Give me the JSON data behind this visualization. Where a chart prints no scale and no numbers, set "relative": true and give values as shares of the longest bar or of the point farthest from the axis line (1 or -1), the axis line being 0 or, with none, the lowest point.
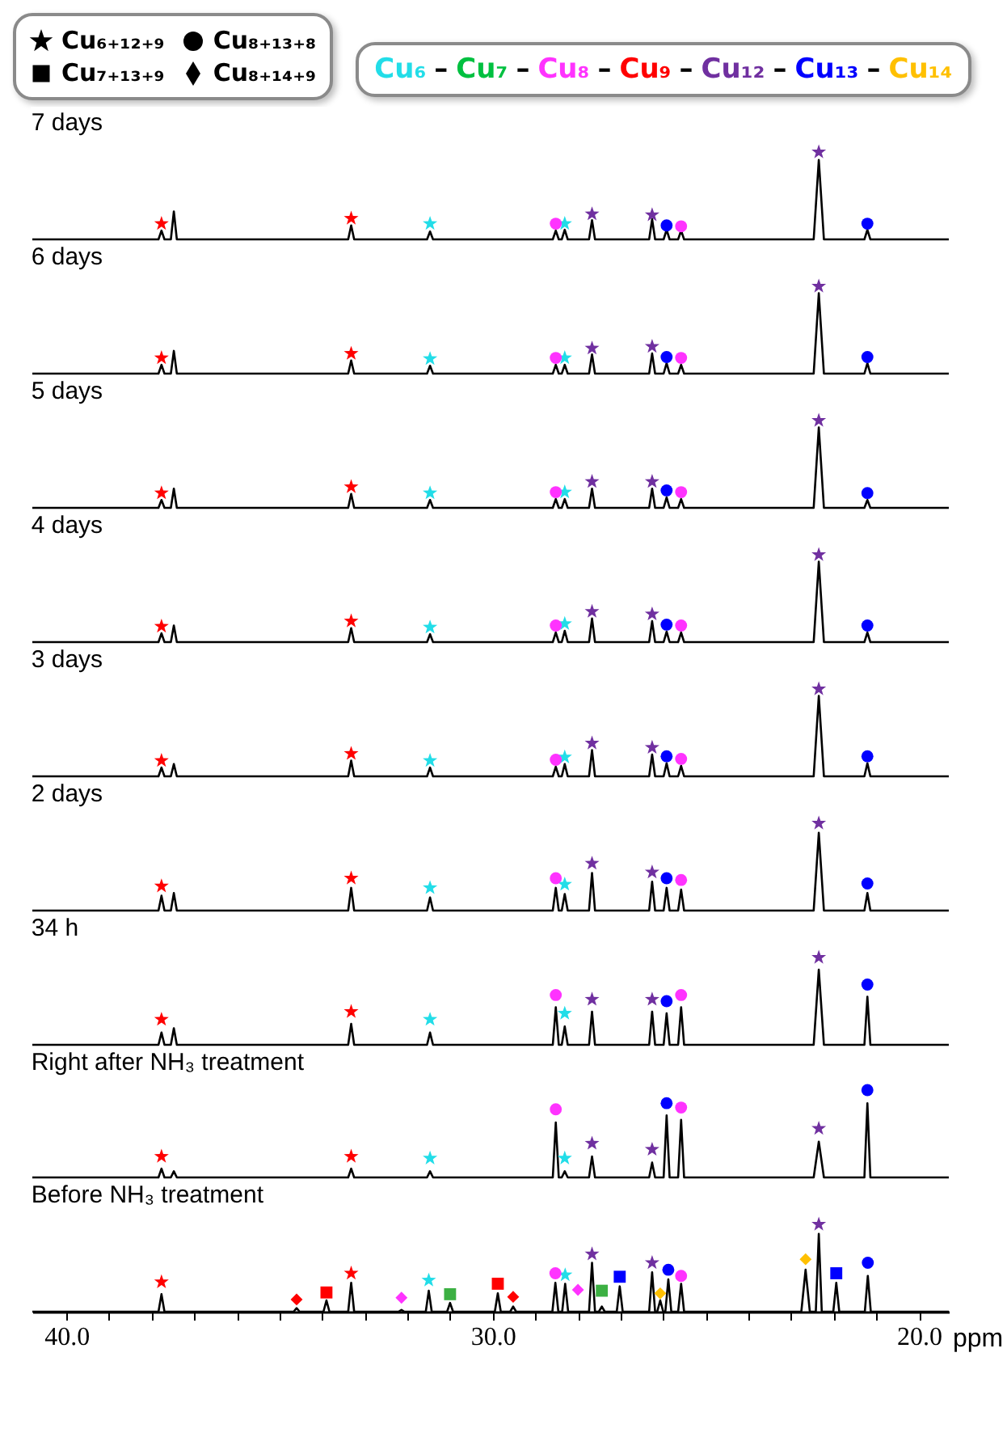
{
  "chart_data": [
    {
      "type": "other",
      "annotations": [
        "Cu₆₊₁₂₊₉",
        "Cu₈₊₁₃₊₈",
        "Cu₇₊₁₃₊₉",
        "Cu₈₊₁₄₊₉"
      ]
    },
    {
      "type": "other",
      "annotations": [
        "–"
      ],
      "series": [
        {
          "name": "Cu₆",
          "color": "#22dde8"
        },
        {
          "name": "Cu₇",
          "color": "#00c040"
        },
        {
          "name": "Cu₈",
          "color": "#ff33ff"
        },
        {
          "name": "Cu₉",
          "color": "#ff0000"
        },
        {
          "name": "Cu₁₂",
          "color": "#7030a0"
        },
        {
          "name": "Cu₁₃",
          "color": "#0000ff"
        },
        {
          "name": "Cu₁₄",
          "color": "#ffc000"
        }
      ]
    },
    {
      "type": "line",
      "title": "7 days",
      "relative": true,
      "xlim": [
        40.8,
        19.3
      ],
      "tick_labels": false,
      "series": [
        {
          "type": "line",
          "color": "#000000",
          "x": [
            40.8,
            37.84,
            37.77,
            37.7,
            37.55,
            37.48,
            37.41,
            33.39,
            33.32,
            33.25,
            31.54,
            31.47,
            31.4,
            28.59,
            28.52,
            28.45,
            28.38,
            28.31,
            28.24,
            27.74,
            27.67,
            27.6,
            26.33,
            26.26,
            26.19,
            25.99,
            25.92,
            25.85,
            25.65,
            25.58,
            25.51,
            22.47,
            22.35,
            22.23,
            21.28,
            21.21,
            21.14,
            19.3
          ],
          "values": [
            0,
            0,
            0.1,
            0,
            0,
            0.32,
            0,
            0,
            0.16,
            0,
            0,
            0.09,
            0,
            0,
            0.1,
            0,
            0,
            0.11,
            0,
            0,
            0.22,
            0,
            0,
            0.23,
            0,
            0,
            0.11,
            0,
            0,
            0.1,
            0,
            0,
            0.91,
            0,
            0,
            0.11,
            0,
            0
          ]
        },
        {
          "type": "scatter",
          "marker": "star",
          "color": "#ff0000",
          "x": [
            37.77,
            33.32
          ],
          "values": [
            0.18,
            0.24
          ]
        },
        {
          "type": "scatter",
          "marker": "star",
          "color": "#22dde8",
          "x": [
            31.47,
            28.31
          ],
          "values": [
            0.18,
            0.18
          ]
        },
        {
          "type": "scatter",
          "marker": "circle",
          "color": "#ff33ff",
          "x": [
            28.52,
            25.58
          ],
          "values": [
            0.18,
            0.15
          ]
        },
        {
          "type": "scatter",
          "marker": "star",
          "color": "#7030a0",
          "x": [
            27.67,
            26.26,
            22.35
          ],
          "values": [
            0.29,
            0.28,
            1
          ]
        },
        {
          "type": "scatter",
          "marker": "circle",
          "color": "#0000ff",
          "x": [
            25.92,
            21.21
          ],
          "values": [
            0.16,
            0.18
          ]
        }
      ]
    },
    {
      "type": "line",
      "title": "6 days",
      "relative": true,
      "xlim": [
        40.8,
        19.3
      ],
      "tick_labels": false,
      "series": [
        {
          "type": "line",
          "color": "#000000",
          "x": [
            40.8,
            37.84,
            37.77,
            37.7,
            37.55,
            37.48,
            37.41,
            33.39,
            33.32,
            33.25,
            31.54,
            31.47,
            31.4,
            28.59,
            28.52,
            28.45,
            28.38,
            28.31,
            28.24,
            27.74,
            27.67,
            27.6,
            26.33,
            26.26,
            26.19,
            25.99,
            25.92,
            25.85,
            25.65,
            25.58,
            25.51,
            22.47,
            22.35,
            22.23,
            21.28,
            21.21,
            21.14,
            19.3
          ],
          "values": [
            0,
            0,
            0.1,
            0,
            0,
            0.26,
            0,
            0,
            0.15,
            0,
            0,
            0.09,
            0,
            0,
            0.1,
            0,
            0,
            0.1,
            0,
            0,
            0.22,
            0,
            0,
            0.23,
            0,
            0,
            0.12,
            0,
            0,
            0.1,
            0,
            0,
            0.92,
            0,
            0,
            0.12,
            0,
            0
          ]
        },
        {
          "type": "scatter",
          "marker": "star",
          "color": "#ff0000",
          "x": [
            37.77,
            33.32
          ],
          "values": [
            0.18,
            0.23
          ]
        },
        {
          "type": "scatter",
          "marker": "star",
          "color": "#22dde8",
          "x": [
            31.47,
            28.31
          ],
          "values": [
            0.17,
            0.18
          ]
        },
        {
          "type": "scatter",
          "marker": "circle",
          "color": "#ff33ff",
          "x": [
            28.52,
            25.58
          ],
          "values": [
            0.18,
            0.18
          ]
        },
        {
          "type": "scatter",
          "marker": "star",
          "color": "#7030a0",
          "x": [
            27.67,
            26.26,
            22.35
          ],
          "values": [
            0.29,
            0.31,
            1
          ]
        },
        {
          "type": "scatter",
          "marker": "circle",
          "color": "#0000ff",
          "x": [
            25.92,
            21.21
          ],
          "values": [
            0.19,
            0.19
          ]
        }
      ]
    },
    {
      "type": "line",
      "title": "5 days",
      "relative": true,
      "xlim": [
        40.8,
        19.3
      ],
      "tick_labels": false,
      "series": [
        {
          "type": "line",
          "color": "#000000",
          "x": [
            40.8,
            37.84,
            37.77,
            37.7,
            37.55,
            37.48,
            37.41,
            33.39,
            33.32,
            33.25,
            31.54,
            31.47,
            31.4,
            28.59,
            28.52,
            28.45,
            28.38,
            28.31,
            28.24,
            27.74,
            27.67,
            27.6,
            26.33,
            26.26,
            26.19,
            25.99,
            25.92,
            25.85,
            25.65,
            25.58,
            25.51,
            22.47,
            22.35,
            22.23,
            21.28,
            21.21,
            21.14,
            19.3
          ],
          "values": [
            0,
            0,
            0.09,
            0,
            0,
            0.22,
            0,
            0,
            0.16,
            0,
            0,
            0.09,
            0,
            0,
            0.1,
            0,
            0,
            0.1,
            0,
            0,
            0.22,
            0,
            0,
            0.22,
            0,
            0,
            0.12,
            0,
            0,
            0.1,
            0,
            0,
            0.92,
            0,
            0,
            0.09,
            0,
            0
          ]
        },
        {
          "type": "scatter",
          "marker": "star",
          "color": "#ff0000",
          "x": [
            37.77,
            33.32
          ],
          "values": [
            0.17,
            0.24
          ]
        },
        {
          "type": "scatter",
          "marker": "star",
          "color": "#22dde8",
          "x": [
            31.47,
            28.31
          ],
          "values": [
            0.17,
            0.18
          ]
        },
        {
          "type": "scatter",
          "marker": "circle",
          "color": "#ff33ff",
          "x": [
            28.52,
            25.58
          ],
          "values": [
            0.18,
            0.18
          ]
        },
        {
          "type": "scatter",
          "marker": "star",
          "color": "#7030a0",
          "x": [
            27.67,
            26.26,
            22.35
          ],
          "values": [
            0.3,
            0.3,
            1
          ]
        },
        {
          "type": "scatter",
          "marker": "circle",
          "color": "#0000ff",
          "x": [
            25.92,
            21.21
          ],
          "values": [
            0.2,
            0.17
          ]
        }
      ]
    },
    {
      "type": "line",
      "title": "4 days",
      "relative": true,
      "xlim": [
        40.8,
        19.3
      ],
      "tick_labels": false,
      "series": [
        {
          "type": "line",
          "color": "#000000",
          "x": [
            40.8,
            37.84,
            37.77,
            37.7,
            37.55,
            37.48,
            37.41,
            33.39,
            33.32,
            33.25,
            31.54,
            31.47,
            31.4,
            28.59,
            28.52,
            28.45,
            28.38,
            28.31,
            28.24,
            27.74,
            27.67,
            27.6,
            26.33,
            26.26,
            26.19,
            25.99,
            25.92,
            25.85,
            25.65,
            25.58,
            25.51,
            22.47,
            22.35,
            22.23,
            21.28,
            21.21,
            21.14,
            19.3
          ],
          "values": [
            0,
            0,
            0.1,
            0,
            0,
            0.19,
            0,
            0,
            0.16,
            0,
            0,
            0.09,
            0,
            0,
            0.11,
            0,
            0,
            0.13,
            0,
            0,
            0.27,
            0,
            0,
            0.24,
            0,
            0,
            0.12,
            0,
            0,
            0.11,
            0,
            0,
            0.92,
            0,
            0,
            0.11,
            0,
            0
          ]
        },
        {
          "type": "scatter",
          "marker": "star",
          "color": "#ff0000",
          "x": [
            37.77,
            33.32
          ],
          "values": [
            0.18,
            0.24
          ]
        },
        {
          "type": "scatter",
          "marker": "star",
          "color": "#22dde8",
          "x": [
            31.47,
            28.31
          ],
          "values": [
            0.17,
            0.21
          ]
        },
        {
          "type": "scatter",
          "marker": "circle",
          "color": "#ff33ff",
          "x": [
            28.52,
            25.58
          ],
          "values": [
            0.19,
            0.19
          ]
        },
        {
          "type": "scatter",
          "marker": "star",
          "color": "#7030a0",
          "x": [
            27.67,
            26.26,
            22.35
          ],
          "values": [
            0.35,
            0.32,
            1
          ]
        },
        {
          "type": "scatter",
          "marker": "circle",
          "color": "#0000ff",
          "x": [
            25.92,
            21.21
          ],
          "values": [
            0.2,
            0.19
          ]
        }
      ]
    },
    {
      "type": "line",
      "title": "3 days",
      "relative": true,
      "xlim": [
        40.8,
        19.3
      ],
      "tick_labels": false,
      "series": [
        {
          "type": "line",
          "color": "#000000",
          "x": [
            40.8,
            37.84,
            37.77,
            37.7,
            37.55,
            37.48,
            37.41,
            33.39,
            33.32,
            33.25,
            31.54,
            31.47,
            31.4,
            28.59,
            28.52,
            28.45,
            28.38,
            28.31,
            28.24,
            27.74,
            27.67,
            27.6,
            26.33,
            26.26,
            26.19,
            25.99,
            25.92,
            25.85,
            25.65,
            25.58,
            25.51,
            22.47,
            22.35,
            22.23,
            21.28,
            21.21,
            21.14,
            19.3
          ],
          "values": [
            0,
            0,
            0.1,
            0,
            0,
            0.14,
            0,
            0,
            0.18,
            0,
            0,
            0.1,
            0,
            0,
            0.11,
            0,
            0,
            0.14,
            0,
            0,
            0.3,
            0,
            0,
            0.25,
            0,
            0,
            0.15,
            0,
            0,
            0.12,
            0,
            0,
            0.92,
            0,
            0,
            0.15,
            0,
            0
          ]
        },
        {
          "type": "scatter",
          "marker": "star",
          "color": "#ff0000",
          "x": [
            37.77,
            33.32
          ],
          "values": [
            0.18,
            0.26
          ]
        },
        {
          "type": "scatter",
          "marker": "star",
          "color": "#22dde8",
          "x": [
            31.47,
            28.31
          ],
          "values": [
            0.18,
            0.22
          ]
        },
        {
          "type": "scatter",
          "marker": "circle",
          "color": "#ff33ff",
          "x": [
            28.52,
            25.58
          ],
          "values": [
            0.19,
            0.2
          ]
        },
        {
          "type": "scatter",
          "marker": "star",
          "color": "#7030a0",
          "x": [
            27.67,
            26.26,
            22.35
          ],
          "values": [
            0.38,
            0.33,
            1
          ]
        },
        {
          "type": "scatter",
          "marker": "circle",
          "color": "#0000ff",
          "x": [
            25.92,
            21.21
          ],
          "values": [
            0.23,
            0.23
          ]
        }
      ]
    },
    {
      "type": "line",
      "title": "2 days",
      "relative": true,
      "xlim": [
        40.8,
        19.3
      ],
      "tick_labels": false,
      "series": [
        {
          "type": "line",
          "color": "#000000",
          "x": [
            40.8,
            37.84,
            37.77,
            37.7,
            37.55,
            37.48,
            37.41,
            33.39,
            33.32,
            33.25,
            31.54,
            31.47,
            31.4,
            28.59,
            28.52,
            28.45,
            28.38,
            28.31,
            28.24,
            27.74,
            27.67,
            27.6,
            26.33,
            26.26,
            26.19,
            25.99,
            25.92,
            25.85,
            25.65,
            25.58,
            25.51,
            22.47,
            22.35,
            22.23,
            21.28,
            21.21,
            21.14,
            19.3
          ],
          "values": [
            0,
            0,
            0.17,
            0,
            0,
            0.2,
            0,
            0,
            0.26,
            0,
            0,
            0.15,
            0,
            0,
            0.26,
            0,
            0,
            0.19,
            0,
            0,
            0.43,
            0,
            0,
            0.33,
            0,
            0,
            0.26,
            0,
            0,
            0.24,
            0,
            0,
            0.89,
            0,
            0,
            0.2,
            0,
            0
          ]
        },
        {
          "type": "scatter",
          "marker": "star",
          "color": "#ff0000",
          "x": [
            37.77,
            33.32
          ],
          "values": [
            0.28,
            0.37
          ]
        },
        {
          "type": "scatter",
          "marker": "star",
          "color": "#22dde8",
          "x": [
            31.47,
            28.31
          ],
          "values": [
            0.26,
            0.3
          ]
        },
        {
          "type": "scatter",
          "marker": "circle",
          "color": "#ff33ff",
          "x": [
            28.52,
            25.58
          ],
          "values": [
            0.37,
            0.35
          ]
        },
        {
          "type": "scatter",
          "marker": "star",
          "color": "#7030a0",
          "x": [
            27.67,
            26.26,
            22.35
          ],
          "values": [
            0.54,
            0.44,
            1
          ]
        },
        {
          "type": "scatter",
          "marker": "circle",
          "color": "#0000ff",
          "x": [
            25.92,
            21.21
          ],
          "values": [
            0.37,
            0.31
          ]
        }
      ]
    },
    {
      "type": "line",
      "title": "34 h",
      "relative": true,
      "xlim": [
        40.8,
        19.3
      ],
      "tick_labels": false,
      "series": [
        {
          "type": "line",
          "color": "#000000",
          "x": [
            40.8,
            37.84,
            37.77,
            37.7,
            37.55,
            37.48,
            37.41,
            33.39,
            33.32,
            33.25,
            31.54,
            31.47,
            31.4,
            28.59,
            28.52,
            28.45,
            28.38,
            28.31,
            28.24,
            27.74,
            27.67,
            27.6,
            26.33,
            26.26,
            26.19,
            25.99,
            25.92,
            25.85,
            25.65,
            25.58,
            25.51,
            22.47,
            22.35,
            22.23,
            21.28,
            21.21,
            21.14,
            19.3
          ],
          "values": [
            0,
            0,
            0.14,
            0,
            0,
            0.19,
            0,
            0,
            0.24,
            0,
            0,
            0.14,
            0,
            0,
            0.43,
            0,
            0,
            0.21,
            0,
            0,
            0.38,
            0,
            0,
            0.38,
            0,
            0,
            0.36,
            0,
            0,
            0.43,
            0,
            0,
            0.86,
            0,
            0,
            0.55,
            0,
            0
          ]
        },
        {
          "type": "scatter",
          "marker": "star",
          "color": "#ff0000",
          "x": [
            37.77,
            33.32
          ],
          "values": [
            0.29,
            0.38
          ]
        },
        {
          "type": "scatter",
          "marker": "star",
          "color": "#22dde8",
          "x": [
            31.47,
            28.31
          ],
          "values": [
            0.29,
            0.36
          ]
        },
        {
          "type": "scatter",
          "marker": "circle",
          "color": "#ff33ff",
          "x": [
            28.52,
            25.58
          ],
          "values": [
            0.57,
            0.57
          ]
        },
        {
          "type": "scatter",
          "marker": "star",
          "color": "#7030a0",
          "x": [
            27.67,
            26.26,
            22.35
          ],
          "values": [
            0.52,
            0.52,
            1
          ]
        },
        {
          "type": "scatter",
          "marker": "circle",
          "color": "#0000ff",
          "x": [
            25.92,
            21.21
          ],
          "values": [
            0.5,
            0.69
          ]
        }
      ]
    },
    {
      "type": "line",
      "title": "Right after NH₃ treatment",
      "relative": true,
      "xlim": [
        40.8,
        19.3
      ],
      "tick_labels": false,
      "series": [
        {
          "type": "line",
          "color": "#000000",
          "x": [
            40.8,
            37.84,
            37.77,
            37.7,
            37.55,
            37.48,
            37.41,
            33.39,
            33.32,
            33.25,
            31.54,
            31.47,
            31.4,
            28.59,
            28.52,
            28.45,
            28.38,
            28.31,
            28.24,
            27.74,
            27.67,
            27.6,
            26.33,
            26.26,
            26.19,
            25.99,
            25.92,
            25.85,
            25.65,
            25.58,
            25.51,
            22.47,
            22.35,
            22.23,
            21.28,
            21.21,
            21.14,
            19.3
          ],
          "values": [
            0,
            0,
            0.1,
            0,
            0,
            0.07,
            0,
            0,
            0.1,
            0,
            0,
            0.07,
            0,
            0,
            0.63,
            0,
            0,
            0.07,
            0,
            0,
            0.24,
            0,
            0,
            0.17,
            0,
            0,
            0.71,
            0,
            0,
            0.66,
            0,
            0,
            0.41,
            0,
            0,
            0.85,
            0,
            0
          ]
        },
        {
          "type": "scatter",
          "marker": "star",
          "color": "#ff0000",
          "x": [
            37.77,
            33.32
          ],
          "values": [
            0.24,
            0.24
          ]
        },
        {
          "type": "scatter",
          "marker": "star",
          "color": "#22dde8",
          "x": [
            31.47,
            28.31
          ],
          "values": [
            0.22,
            0.22
          ]
        },
        {
          "type": "scatter",
          "marker": "circle",
          "color": "#ff33ff",
          "x": [
            28.52,
            25.58
          ],
          "values": [
            0.78,
            0.8
          ]
        },
        {
          "type": "scatter",
          "marker": "star",
          "color": "#7030a0",
          "x": [
            27.67,
            26.26,
            22.35
          ],
          "values": [
            0.39,
            0.32,
            0.56
          ]
        },
        {
          "type": "scatter",
          "marker": "circle",
          "color": "#0000ff",
          "x": [
            25.92,
            21.21
          ],
          "values": [
            0.85,
            1
          ]
        }
      ]
    },
    {
      "type": "line",
      "title": "Before NH₃ treatment",
      "relative": true,
      "xlim": [
        40.8,
        19.3
      ],
      "xlabel": "ppm",
      "xticks": [
        {
          "value": 40,
          "label": "40.0"
        },
        {
          "value": 39,
          "label": null
        },
        {
          "value": 38,
          "label": null
        },
        {
          "value": 37,
          "label": null
        },
        {
          "value": 36,
          "label": null
        },
        {
          "value": 35,
          "label": null
        },
        {
          "value": 34,
          "label": null
        },
        {
          "value": 33,
          "label": null
        },
        {
          "value": 32,
          "label": null
        },
        {
          "value": 31,
          "label": null
        },
        {
          "value": 30,
          "label": "30.0"
        },
        {
          "value": 29,
          "label": null
        },
        {
          "value": 28,
          "label": null
        },
        {
          "value": 27,
          "label": null
        },
        {
          "value": 26,
          "label": null
        },
        {
          "value": 25,
          "label": null
        },
        {
          "value": 24,
          "label": null
        },
        {
          "value": 23,
          "label": null
        },
        {
          "value": 22,
          "label": null
        },
        {
          "value": 21,
          "label": null
        },
        {
          "value": 20,
          "label": "20.0"
        }
      ],
      "series": [
        {
          "type": "line",
          "color": "#000000",
          "x": [
            40.8,
            37.84,
            37.77,
            37.7,
            34.67,
            34.6,
            34.53,
            33.97,
            33.9,
            33.83,
            33.39,
            33.32,
            33.25,
            32.21,
            32.14,
            32.07,
            31.57,
            31.5,
            31.43,
            31.07,
            31.0,
            30.93,
            29.95,
            29.88,
            29.81,
            29.59,
            29.52,
            29.45,
            28.6,
            28.53,
            28.46,
            28.37,
            28.3,
            28.23,
            27.74,
            27.67,
            27.6,
            27.51,
            27.44,
            27.37,
            27.09,
            27.02,
            26.95,
            26.33,
            26.26,
            26.19,
            26.14,
            26.07,
            26.0,
            25.95,
            25.88,
            25.81,
            25.65,
            25.58,
            25.51,
            22.76,
            22.66,
            22.56,
            22.42,
            22.35,
            22.28,
            22.01,
            21.94,
            21.87,
            21.27,
            21.2,
            21.13,
            19.3
          ],
          "values": [
            0,
            0,
            0.2,
            0,
            0,
            0.04,
            0,
            0,
            0.13,
            0,
            0,
            0.33,
            0,
            0,
            0.02,
            0,
            0,
            0.24,
            0,
            0,
            0.1,
            0,
            0,
            0.21,
            0,
            0,
            0.06,
            0,
            0,
            0.33,
            0,
            0,
            0.32,
            0,
            0,
            0.56,
            0,
            0,
            0.06,
            0,
            0,
            0.29,
            0,
            0,
            0.45,
            0,
            0,
            0.13,
            0,
            0,
            0.37,
            0,
            0,
            0.32,
            0,
            0,
            0.48,
            0,
            0,
            0.89,
            0,
            0,
            0.33,
            0,
            0,
            0.41,
            0,
            0
          ]
        },
        {
          "type": "scatter",
          "marker": "star",
          "color": "#ff0000",
          "x": [
            37.77,
            33.32
          ],
          "values": [
            0.34,
            0.44
          ]
        },
        {
          "type": "scatter",
          "marker": "diamond",
          "color": "#ff0000",
          "x": [
            34.6,
            29.52
          ],
          "values": [
            0.14,
            0.17
          ]
        },
        {
          "type": "scatter",
          "marker": "square",
          "color": "#ff0000",
          "x": [
            33.9,
            29.88
          ],
          "values": [
            0.22,
            0.32
          ]
        },
        {
          "type": "scatter",
          "marker": "diamond",
          "color": "#ff33ff",
          "x": [
            32.14,
            28.0
          ],
          "values": [
            0.16,
            0.25
          ]
        },
        {
          "type": "scatter",
          "marker": "star",
          "color": "#22dde8",
          "x": [
            31.5,
            28.3
          ],
          "values": [
            0.36,
            0.42
          ]
        },
        {
          "type": "scatter",
          "marker": "square",
          "color": "#3cb043",
          "x": [
            31.0,
            27.44
          ],
          "values": [
            0.2,
            0.24
          ]
        },
        {
          "type": "scatter",
          "marker": "circle",
          "color": "#ff33ff",
          "x": [
            28.53,
            25.58
          ],
          "values": [
            0.44,
            0.41
          ]
        },
        {
          "type": "scatter",
          "marker": "star",
          "color": "#7030a0",
          "x": [
            27.67,
            26.26,
            22.35
          ],
          "values": [
            0.66,
            0.56,
            1
          ]
        },
        {
          "type": "scatter",
          "marker": "square",
          "color": "#0000ff",
          "x": [
            27.02,
            21.94
          ],
          "values": [
            0.4,
            0.44
          ]
        },
        {
          "type": "scatter",
          "marker": "diamond",
          "color": "#ffc000",
          "x": [
            26.07,
            22.66
          ],
          "values": [
            0.21,
            0.6
          ]
        },
        {
          "type": "scatter",
          "marker": "circle",
          "color": "#0000ff",
          "x": [
            25.88,
            21.2
          ],
          "values": [
            0.48,
            0.56
          ]
        }
      ]
    }
  ]
}
